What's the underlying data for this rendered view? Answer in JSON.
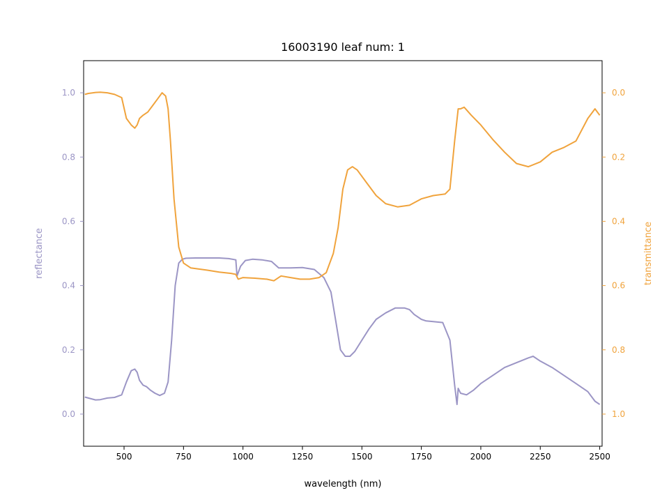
{
  "chart_data": {
    "type": "line",
    "title": "16003190 leaf num: 1",
    "xlabel": "wavelength (nm)",
    "ylabel_left": "reflectance",
    "ylabel_right": "transmittance",
    "xlim": [
      330,
      2510
    ],
    "ylim_left": [
      -0.1,
      1.1
    ],
    "ylim_right_inverted": [
      1.1,
      -0.1
    ],
    "x_ticks": [
      500,
      750,
      1000,
      1250,
      1500,
      1750,
      2000,
      2250,
      2500
    ],
    "y_ticks_left": [
      0.0,
      0.2,
      0.4,
      0.6,
      0.8,
      1.0
    ],
    "y_ticks_right": [
      0.0,
      0.2,
      0.4,
      0.6,
      0.8,
      1.0
    ],
    "grid": false,
    "colors": {
      "reflectance": "#9b95c5",
      "transmittance": "#f0a33c"
    },
    "series": [
      {
        "axis": "left",
        "x": [
          335,
          350,
          380,
          400,
          430,
          460,
          490,
          510,
          530,
          545,
          555,
          565,
          580,
          595,
          610,
          630,
          650,
          670,
          685,
          700,
          715,
          730,
          745,
          760,
          800,
          850,
          900,
          940,
          970,
          975,
          990,
          1010,
          1040,
          1080,
          1120,
          1150,
          1200,
          1250,
          1300,
          1340,
          1370,
          1390,
          1410,
          1430,
          1450,
          1470,
          1500,
          1530,
          1560,
          1600,
          1640,
          1680,
          1700,
          1720,
          1750,
          1770,
          1800,
          1840,
          1870,
          1890,
          1900,
          1905,
          1915,
          1940,
          1970,
          2000,
          2050,
          2100,
          2150,
          2200,
          2220,
          2250,
          2300,
          2350,
          2400,
          2450,
          2480,
          2500
        ],
        "y": [
          0.053,
          0.05,
          0.044,
          0.045,
          0.05,
          0.052,
          0.06,
          0.1,
          0.135,
          0.14,
          0.13,
          0.105,
          0.09,
          0.085,
          0.075,
          0.065,
          0.058,
          0.065,
          0.1,
          0.23,
          0.4,
          0.47,
          0.482,
          0.485,
          0.486,
          0.486,
          0.486,
          0.484,
          0.48,
          0.43,
          0.46,
          0.478,
          0.482,
          0.48,
          0.475,
          0.455,
          0.455,
          0.456,
          0.45,
          0.425,
          0.38,
          0.29,
          0.2,
          0.18,
          0.18,
          0.195,
          0.23,
          0.265,
          0.295,
          0.315,
          0.33,
          0.33,
          0.325,
          0.31,
          0.295,
          0.29,
          0.288,
          0.285,
          0.23,
          0.09,
          0.03,
          0.08,
          0.065,
          0.06,
          0.075,
          0.095,
          0.12,
          0.145,
          0.16,
          0.175,
          0.18,
          0.165,
          0.145,
          0.12,
          0.095,
          0.07,
          0.04,
          0.03
        ]
      },
      {
        "axis": "right",
        "x": [
          335,
          350,
          380,
          400,
          430,
          460,
          490,
          510,
          530,
          545,
          555,
          565,
          580,
          600,
          620,
          640,
          660,
          675,
          685,
          695,
          710,
          730,
          750,
          780,
          850,
          900,
          950,
          970,
          980,
          1000,
          1050,
          1100,
          1130,
          1160,
          1200,
          1240,
          1280,
          1320,
          1350,
          1380,
          1400,
          1420,
          1440,
          1460,
          1480,
          1520,
          1560,
          1600,
          1650,
          1700,
          1750,
          1800,
          1850,
          1870,
          1890,
          1905,
          1915,
          1930,
          1960,
          2000,
          2050,
          2100,
          2150,
          2200,
          2250,
          2300,
          2350,
          2400,
          2450,
          2480,
          2500
        ],
        "y": [
          0.005,
          0.002,
          -0.001,
          -0.002,
          0.0,
          0.005,
          0.015,
          0.08,
          0.1,
          0.11,
          0.1,
          0.08,
          0.07,
          0.06,
          0.04,
          0.02,
          0.0,
          0.01,
          0.05,
          0.15,
          0.33,
          0.48,
          0.53,
          0.545,
          0.552,
          0.558,
          0.562,
          0.565,
          0.58,
          0.575,
          0.577,
          0.58,
          0.585,
          0.57,
          0.575,
          0.58,
          0.58,
          0.575,
          0.56,
          0.5,
          0.42,
          0.3,
          0.24,
          0.23,
          0.24,
          0.28,
          0.32,
          0.345,
          0.355,
          0.35,
          0.33,
          0.32,
          0.315,
          0.3,
          0.15,
          0.05,
          0.05,
          0.045,
          0.07,
          0.1,
          0.145,
          0.185,
          0.22,
          0.23,
          0.215,
          0.185,
          0.17,
          0.15,
          0.08,
          0.05,
          0.07
        ]
      }
    ]
  }
}
